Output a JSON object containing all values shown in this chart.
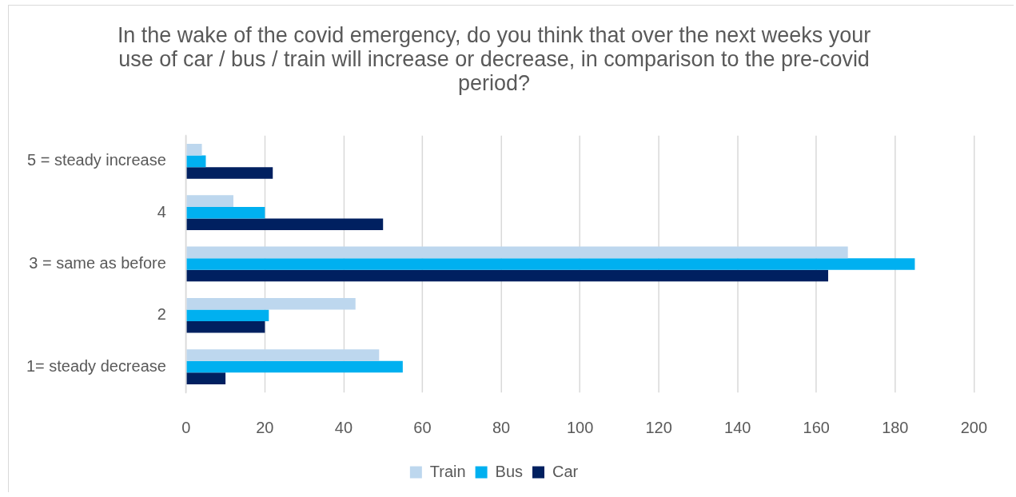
{
  "chart_data": {
    "type": "bar",
    "orientation": "horizontal",
    "title": "In the wake of the covid emergency, do you think that over the next weeks your use of car / bus / train will increase or decrease, in comparison to the pre-covid period?",
    "categories": [
      "5 = steady increase",
      "4",
      "3 = same as before",
      "2",
      "1= steady decrease"
    ],
    "series": [
      {
        "name": "Train",
        "color": "#bdd7ee",
        "values": [
          4,
          12,
          168,
          43,
          49
        ]
      },
      {
        "name": "Bus",
        "color": "#00b0f0",
        "values": [
          5,
          20,
          185,
          21,
          55
        ]
      },
      {
        "name": "Car",
        "color": "#002060",
        "values": [
          22,
          50,
          163,
          20,
          10
        ]
      }
    ],
    "xlim": [
      0,
      200
    ],
    "xticks": [
      0,
      20,
      40,
      60,
      80,
      100,
      120,
      140,
      160,
      180,
      200
    ],
    "grid": "x",
    "legend": "bottom"
  }
}
